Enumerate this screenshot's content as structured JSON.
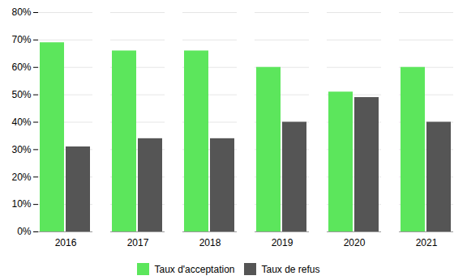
{
  "chart_data": {
    "type": "bar",
    "categories": [
      "2016",
      "2017",
      "2018",
      "2019",
      "2020",
      "2021"
    ],
    "series": [
      {
        "name": "Taux d'acceptation",
        "color": "#5ce65c",
        "values": [
          0.69,
          0.66,
          0.66,
          0.6,
          0.51,
          0.6
        ]
      },
      {
        "name": "Taux de refus",
        "color": "#555555",
        "values": [
          0.31,
          0.34,
          0.34,
          0.4,
          0.49,
          0.4
        ]
      }
    ],
    "ylim": [
      0.0,
      0.8
    ],
    "yticks": [
      {
        "value": 0.0,
        "label": "0%"
      },
      {
        "value": 0.1,
        "label": "10%"
      },
      {
        "value": 0.2,
        "label": "20%"
      },
      {
        "value": 0.3,
        "label": "30%"
      },
      {
        "value": 0.4,
        "label": "40%"
      },
      {
        "value": 0.5,
        "label": "50%"
      },
      {
        "value": 0.6,
        "label": "60%"
      },
      {
        "value": 0.7,
        "label": "70%"
      },
      {
        "value": 0.8,
        "label": "80%"
      }
    ],
    "grid": true,
    "legend": "bottom"
  }
}
